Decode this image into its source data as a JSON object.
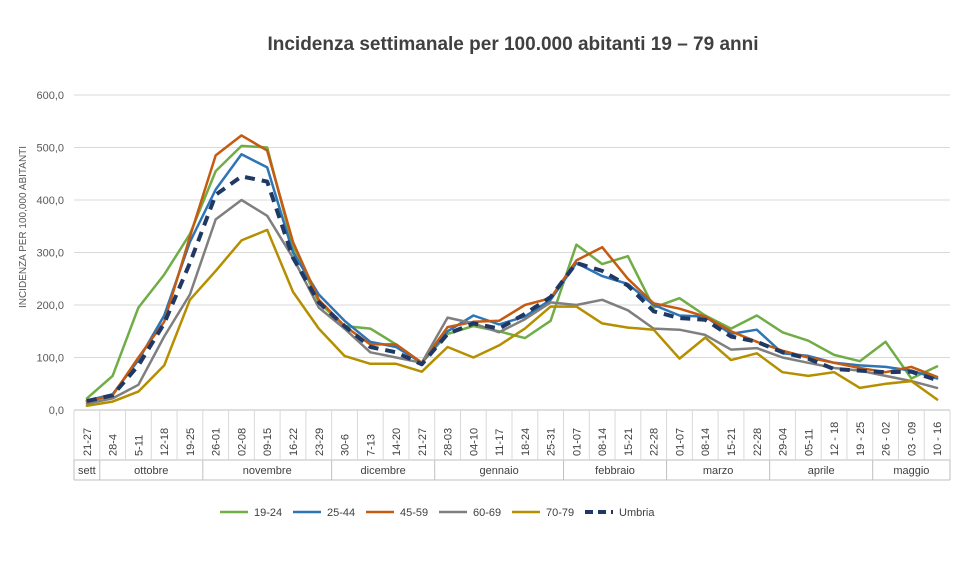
{
  "chart_data": {
    "type": "line",
    "title": "Incidenza settimanale per 100.000 abitanti 19 – 79 anni",
    "ylabel": "INCIDENZA PER 100,000 ABITANTI",
    "xlabel": "",
    "ylim": [
      0,
      600
    ],
    "yticks": [
      "0,0",
      "100,0",
      "200,0",
      "300,0",
      "400,0",
      "500,0",
      "600,0"
    ],
    "grid": true,
    "legend_position": "bottom",
    "categories": [
      "21-27",
      "28-4",
      "5-11",
      "12-18",
      "19-25",
      "26-01",
      "02-08",
      "09-15",
      "16-22",
      "23-29",
      "30-6",
      "7-13",
      "14-20",
      "21-27",
      "28-03",
      "04-10",
      "11-17",
      "18-24",
      "25-31",
      "01-07",
      "08-14",
      "15-21",
      "22-28",
      "01-07",
      "08-14",
      "15-21",
      "22-28",
      "29-04",
      "05-11",
      "12 - 18",
      "19 - 25",
      "26 - 02",
      "03 - 09",
      "10 - 16"
    ],
    "month_groups": [
      {
        "label": "sett",
        "start": 0,
        "end": 0
      },
      {
        "label": "ottobre",
        "start": 1,
        "end": 4
      },
      {
        "label": "novembre",
        "start": 5,
        "end": 9
      },
      {
        "label": "dicembre",
        "start": 10,
        "end": 13
      },
      {
        "label": "gennaio",
        "start": 14,
        "end": 18
      },
      {
        "label": "febbraio",
        "start": 19,
        "end": 22
      },
      {
        "label": "marzo",
        "start": 23,
        "end": 26
      },
      {
        "label": "aprile",
        "start": 27,
        "end": 30
      },
      {
        "label": "maggio",
        "start": 31,
        "end": 33
      }
    ],
    "series": [
      {
        "name": "19-24",
        "color": "#70ad47",
        "dashed": false,
        "values": [
          22,
          65,
          195,
          258,
          335,
          455,
          503,
          500,
          310,
          205,
          160,
          155,
          125,
          90,
          145,
          160,
          150,
          137,
          170,
          315,
          278,
          293,
          195,
          213,
          180,
          155,
          180,
          148,
          132,
          105,
          93,
          130,
          60,
          83
        ]
      },
      {
        "name": "25-44",
        "color": "#2e75b6",
        "dashed": false,
        "values": [
          18,
          30,
          95,
          180,
          320,
          420,
          487,
          462,
          300,
          220,
          170,
          130,
          120,
          90,
          150,
          180,
          163,
          178,
          210,
          280,
          255,
          240,
          200,
          180,
          178,
          145,
          153,
          108,
          103,
          90,
          85,
          82,
          75,
          60
        ]
      },
      {
        "name": "45-59",
        "color": "#c55a11",
        "dashed": false,
        "values": [
          16,
          28,
          100,
          168,
          330,
          485,
          523,
          494,
          320,
          210,
          160,
          125,
          125,
          90,
          158,
          168,
          170,
          200,
          213,
          285,
          310,
          250,
          203,
          193,
          178,
          150,
          130,
          113,
          100,
          90,
          80,
          72,
          82,
          63
        ]
      },
      {
        "name": "60-69",
        "color": "#7f7f7f",
        "dashed": false,
        "values": [
          12,
          22,
          48,
          140,
          220,
          363,
          400,
          370,
          290,
          195,
          155,
          110,
          100,
          90,
          176,
          165,
          148,
          173,
          205,
          200,
          210,
          190,
          155,
          153,
          143,
          115,
          118,
          100,
          90,
          80,
          75,
          65,
          55,
          42
        ]
      },
      {
        "name": "70-79",
        "color": "#b58f00",
        "dashed": false,
        "values": [
          8,
          16,
          35,
          85,
          210,
          265,
          323,
          343,
          225,
          155,
          103,
          88,
          88,
          73,
          120,
          100,
          123,
          155,
          197,
          197,
          165,
          157,
          153,
          98,
          138,
          95,
          108,
          72,
          65,
          72,
          42,
          50,
          55,
          20
        ]
      },
      {
        "name": "Umbria",
        "color": "#1f3864",
        "dashed": true,
        "values": [
          17,
          28,
          85,
          165,
          280,
          410,
          445,
          435,
          290,
          205,
          160,
          120,
          110,
          87,
          145,
          165,
          155,
          183,
          215,
          280,
          265,
          237,
          188,
          175,
          172,
          140,
          130,
          110,
          98,
          78,
          75,
          72,
          73,
          57
        ]
      }
    ]
  }
}
